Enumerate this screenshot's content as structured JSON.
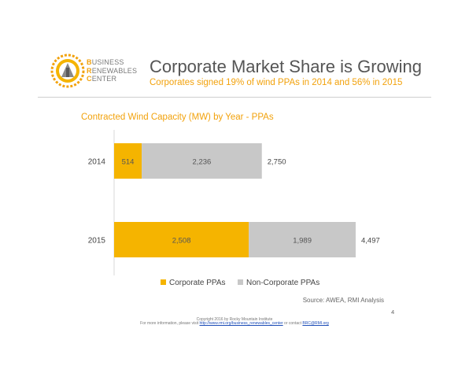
{
  "header": {
    "logo_lines": [
      {
        "initial": "B",
        "rest": "USINESS"
      },
      {
        "initial": "R",
        "rest": "ENEWABLES"
      },
      {
        "initial": "C",
        "rest": "ENTER"
      }
    ],
    "title": "Corporate Market Share is Growing",
    "subtitle": "Corporates signed 19% of wind PPAs in 2014 and 56% in 2015"
  },
  "chart_data": {
    "type": "bar",
    "orientation": "horizontal",
    "stacked": true,
    "title": "Contracted Wind Capacity (MW) by Year - PPAs",
    "categories": [
      "2014",
      "2015"
    ],
    "series": [
      {
        "name": "Corporate PPAs",
        "color": "#f5b400",
        "values": [
          514,
          2508
        ],
        "labels": [
          "514",
          "2,508"
        ]
      },
      {
        "name": "Non-Corporate PPAs",
        "color": "#c8c8c8",
        "values": [
          2236,
          1989
        ],
        "labels": [
          "2,236",
          "1,989"
        ]
      }
    ],
    "totals": [
      2750,
      4497
    ],
    "total_labels": [
      "2,750",
      "4,497"
    ],
    "xlim": [
      0,
      4497
    ],
    "legend": "bottom",
    "grid": false,
    "source": "Source: AWEA, RMI Analysis"
  },
  "footer": {
    "page_number": "4",
    "copyright": "Copyright 2016 by Rocky Mountain Institute",
    "info_prefix": "For more information, please visit",
    "info_link": "http://www.rmi.org/business_renewables_center",
    "info_mid": "or contact",
    "info_email": "BRC@RMI.org"
  }
}
